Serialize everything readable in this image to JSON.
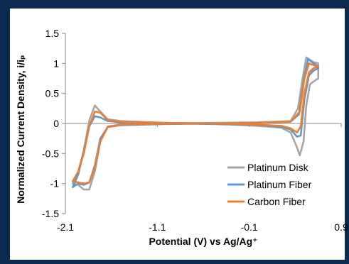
{
  "chart_data": {
    "type": "line",
    "title": "",
    "xlabel": "Potential  (V) vs Ag/Ag⁺",
    "ylabel": "Normalized Current Density, i/iₚ",
    "xlim": [
      -2.1,
      0.9
    ],
    "ylim": [
      -1.5,
      1.5
    ],
    "x_ticks": [
      "-2.1",
      "-1.1",
      "-0.1",
      "0.9"
    ],
    "y_ticks": [
      "1.5",
      "1",
      "0.5",
      "0",
      "-0.5",
      "-1",
      "-1.5"
    ],
    "grid": false,
    "legend_position": "bottom-right",
    "series": [
      {
        "name": "Platinum Disk",
        "color": "#a6a6a6",
        "cathodic_branch": [
          [
            0.65,
            1.0
          ],
          [
            0.6,
            1.02
          ],
          [
            0.52,
            1.1
          ],
          [
            0.48,
            0.75
          ],
          [
            0.43,
            0.25
          ],
          [
            0.35,
            0.04
          ],
          [
            0.0,
            0.02
          ],
          [
            -0.5,
            0.01
          ],
          [
            -1.0,
            0.0
          ],
          [
            -1.5,
            -0.02
          ],
          [
            -1.64,
            -0.05
          ],
          [
            -1.72,
            -0.3
          ],
          [
            -1.78,
            -0.8
          ],
          [
            -1.84,
            -1.1
          ],
          [
            -1.9,
            -1.1
          ],
          [
            -1.96,
            -1.02
          ],
          [
            -2.02,
            -1.0
          ]
        ],
        "anodic_branch": [
          [
            -2.02,
            -1.0
          ],
          [
            -1.96,
            -0.8
          ],
          [
            -1.9,
            -0.45
          ],
          [
            -1.84,
            0.05
          ],
          [
            -1.78,
            0.3
          ],
          [
            -1.72,
            0.2
          ],
          [
            -1.64,
            0.07
          ],
          [
            -1.5,
            0.04
          ],
          [
            -1.0,
            0.01
          ],
          [
            -0.5,
            0.0
          ],
          [
            0.0,
            -0.04
          ],
          [
            0.25,
            -0.07
          ],
          [
            0.35,
            -0.15
          ],
          [
            0.42,
            -0.4
          ],
          [
            0.45,
            -0.53
          ],
          [
            0.49,
            -0.3
          ],
          [
            0.52,
            0.3
          ],
          [
            0.56,
            0.65
          ],
          [
            0.6,
            0.7
          ],
          [
            0.65,
            0.75
          ],
          [
            0.65,
            1.0
          ]
        ]
      },
      {
        "name": "Platinum Fiber",
        "color": "#5b9bd5",
        "cathodic_branch": [
          [
            0.65,
            0.95
          ],
          [
            0.6,
            1.0
          ],
          [
            0.54,
            1.07
          ],
          [
            0.49,
            0.7
          ],
          [
            0.44,
            0.15
          ],
          [
            0.35,
            0.03
          ],
          [
            0.0,
            0.01
          ],
          [
            -0.5,
            0.0
          ],
          [
            -1.0,
            -0.01
          ],
          [
            -1.5,
            -0.03
          ],
          [
            -1.64,
            -0.06
          ],
          [
            -1.72,
            -0.25
          ],
          [
            -1.78,
            -0.7
          ],
          [
            -1.84,
            -0.98
          ],
          [
            -1.9,
            -1.02
          ],
          [
            -1.96,
            -1.0
          ],
          [
            -2.02,
            -1.06
          ]
        ],
        "anodic_branch": [
          [
            -2.02,
            -1.06
          ],
          [
            -1.96,
            -0.85
          ],
          [
            -1.9,
            -0.45
          ],
          [
            -1.84,
            -0.05
          ],
          [
            -1.78,
            0.12
          ],
          [
            -1.72,
            0.1
          ],
          [
            -1.64,
            0.04
          ],
          [
            -1.5,
            0.02
          ],
          [
            -1.0,
            0.0
          ],
          [
            -0.5,
            -0.01
          ],
          [
            0.0,
            -0.03
          ],
          [
            0.25,
            -0.06
          ],
          [
            0.35,
            -0.1
          ],
          [
            0.42,
            -0.22
          ],
          [
            0.46,
            -0.2
          ],
          [
            0.5,
            0.4
          ],
          [
            0.55,
            0.8
          ],
          [
            0.6,
            0.88
          ],
          [
            0.65,
            0.92
          ]
        ]
      },
      {
        "name": "Carbon Fiber",
        "color": "#ed7d31",
        "cathodic_branch": [
          [
            0.65,
            0.95
          ],
          [
            0.6,
            0.97
          ],
          [
            0.55,
            1.0
          ],
          [
            0.5,
            0.75
          ],
          [
            0.45,
            0.2
          ],
          [
            0.35,
            0.03
          ],
          [
            0.0,
            0.01
          ],
          [
            -0.5,
            0.0
          ],
          [
            -1.0,
            0.0
          ],
          [
            -1.5,
            -0.02
          ],
          [
            -1.64,
            -0.06
          ],
          [
            -1.72,
            -0.3
          ],
          [
            -1.78,
            -0.75
          ],
          [
            -1.84,
            -0.98
          ],
          [
            -1.9,
            -1.0
          ],
          [
            -1.96,
            -0.98
          ],
          [
            -2.02,
            -0.96
          ]
        ],
        "anodic_branch": [
          [
            -2.02,
            -0.96
          ],
          [
            -1.96,
            -0.8
          ],
          [
            -1.9,
            -0.5
          ],
          [
            -1.84,
            -0.05
          ],
          [
            -1.78,
            0.2
          ],
          [
            -1.72,
            0.18
          ],
          [
            -1.64,
            0.06
          ],
          [
            -1.5,
            0.03
          ],
          [
            -1.0,
            0.01
          ],
          [
            -0.5,
            0.0
          ],
          [
            0.0,
            -0.02
          ],
          [
            0.25,
            -0.04
          ],
          [
            0.35,
            -0.08
          ],
          [
            0.42,
            -0.15
          ],
          [
            0.46,
            -0.05
          ],
          [
            0.5,
            0.5
          ],
          [
            0.55,
            0.85
          ],
          [
            0.6,
            0.92
          ],
          [
            0.65,
            0.95
          ]
        ]
      }
    ]
  }
}
